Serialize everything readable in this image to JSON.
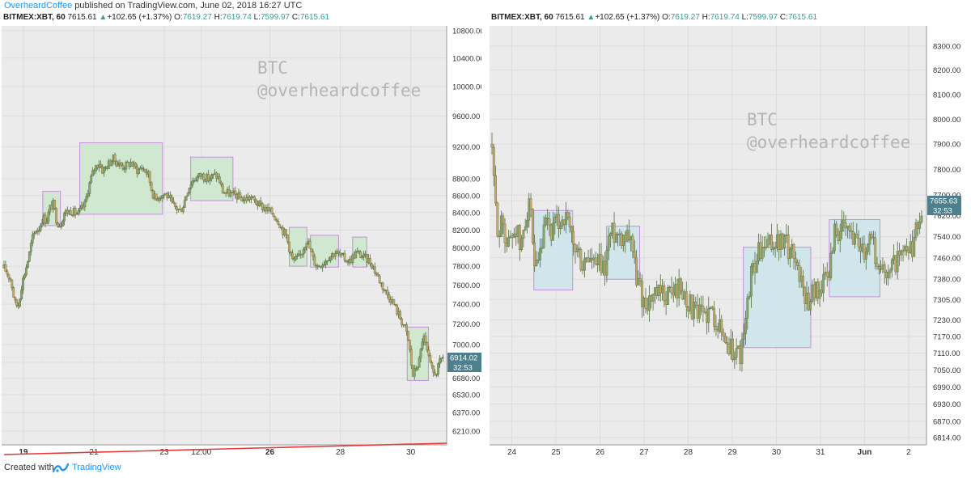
{
  "header": {
    "author": "OverheardCoffee",
    "published": " published on TradingView.com, June 02, 2018 16:27 UTC"
  },
  "footer": {
    "created_with": "Created with",
    "brand": "TradingView"
  },
  "colors": {
    "plot_bg": "#ebebeb",
    "candle_up": "#8aa66f",
    "candle_down": "#c9a86b",
    "candle_wick": "#556b3f",
    "box_green_fill": "#cfe8cf",
    "box_blue_fill": "#cfe6ea",
    "box_stroke": "#c58bdb",
    "trendline": "#e53935",
    "price_tag": "#4d7f8c",
    "header_green": "#26a69a"
  },
  "chart_data": [
    {
      "type": "candlestick",
      "symbol_line": {
        "symbol": "BITMEX:XBT, 60",
        "last": "7615.61",
        "arrow": "▲",
        "change": "+102.65 (+1.37%)",
        "open_label": "O:",
        "open": "7619.27",
        "high_label": "H:",
        "high": "7619.74",
        "low_label": "L:",
        "low": "7599.97",
        "close_label": "C:",
        "close": "7615.61"
      },
      "watermark": [
        "BTC",
        "@overheardcoffee"
      ],
      "yaxis_scale": "log",
      "ylim": [
        6120,
        11000
      ],
      "y_ticks": [
        "10800.00",
        "10400.00",
        "10000.00",
        "9600.00",
        "9200.00",
        "8800.00",
        "8600.00",
        "8400.00",
        "8200.00",
        "8000.00",
        "7800.00",
        "7600.00",
        "7400.00",
        "7200.00",
        "7000.00",
        "6830.00",
        "6680.00",
        "6530.00",
        "6370.00",
        "6210.00"
      ],
      "x_ticks": [
        {
          "label": "19",
          "bold": true
        },
        {
          "label": "21"
        },
        {
          "label": "23"
        },
        {
          "label": "12:00"
        },
        {
          "label": "26",
          "bold": true
        },
        {
          "label": "28"
        },
        {
          "label": "30"
        }
      ],
      "x_range_days": [
        18.4,
        30.9
      ],
      "last_price_tag": "6914.02",
      "countdown_tag": "32:53",
      "close_path": [
        [
          18.4,
          7780
        ],
        [
          18.5,
          7720
        ],
        [
          18.6,
          7650
        ],
        [
          18.7,
          7420
        ],
        [
          18.8,
          7380
        ],
        [
          18.9,
          7600
        ],
        [
          19.0,
          7750
        ],
        [
          19.1,
          7900
        ],
        [
          19.2,
          8100
        ],
        [
          19.3,
          8200
        ],
        [
          19.4,
          8220
        ],
        [
          19.5,
          8350
        ],
        [
          19.6,
          8300
        ],
        [
          19.7,
          8450
        ],
        [
          19.8,
          8500
        ],
        [
          19.9,
          8300
        ],
        [
          20.0,
          8250
        ],
        [
          20.1,
          8400
        ],
        [
          20.3,
          8420
        ],
        [
          20.5,
          8380
        ],
        [
          20.7,
          8500
        ],
        [
          20.8,
          8700
        ],
        [
          20.9,
          8850
        ],
        [
          21.0,
          8950
        ],
        [
          21.1,
          9000
        ],
        [
          21.2,
          8900
        ],
        [
          21.3,
          8950
        ],
        [
          21.5,
          9050
        ],
        [
          21.6,
          9000
        ],
        [
          21.8,
          8950
        ],
        [
          22.0,
          9000
        ],
        [
          22.2,
          8900
        ],
        [
          22.3,
          8950
        ],
        [
          22.5,
          8850
        ],
        [
          22.6,
          8650
        ],
        [
          22.7,
          8550
        ],
        [
          22.8,
          8600
        ],
        [
          23.0,
          8620
        ],
        [
          23.2,
          8480
        ],
        [
          23.4,
          8420
        ],
        [
          23.5,
          8500
        ],
        [
          23.6,
          8650
        ],
        [
          23.7,
          8750
        ],
        [
          23.8,
          8800
        ],
        [
          24.0,
          8850
        ],
        [
          24.2,
          8800
        ],
        [
          24.4,
          8850
        ],
        [
          24.5,
          8800
        ],
        [
          24.6,
          8650
        ],
        [
          24.8,
          8620
        ],
        [
          25.0,
          8600
        ],
        [
          25.2,
          8550
        ],
        [
          25.4,
          8580
        ],
        [
          25.6,
          8500
        ],
        [
          25.8,
          8450
        ],
        [
          26.0,
          8400
        ],
        [
          26.2,
          8300
        ],
        [
          26.3,
          8200
        ],
        [
          26.4,
          8150
        ],
        [
          26.6,
          7850
        ],
        [
          26.8,
          7900
        ],
        [
          27.0,
          8100
        ],
        [
          27.2,
          7850
        ],
        [
          27.3,
          7800
        ],
        [
          27.5,
          7850
        ],
        [
          27.6,
          7900
        ],
        [
          27.8,
          7950
        ],
        [
          28.0,
          7900
        ],
        [
          28.2,
          7850
        ],
        [
          28.4,
          7950
        ],
        [
          28.6,
          7900
        ],
        [
          28.8,
          7850
        ],
        [
          29.0,
          7700
        ],
        [
          29.2,
          7550
        ],
        [
          29.4,
          7450
        ],
        [
          29.6,
          7300
        ],
        [
          29.8,
          7150
        ],
        [
          29.9,
          7000
        ],
        [
          30.0,
          6700
        ],
        [
          30.2,
          6850
        ],
        [
          30.3,
          7100
        ],
        [
          30.4,
          6950
        ],
        [
          30.5,
          6800
        ],
        [
          30.6,
          6720
        ],
        [
          30.7,
          6750
        ],
        [
          30.8,
          6850
        ],
        [
          30.9,
          6914
        ]
      ],
      "boxes": [
        {
          "d0": 19.5,
          "d1": 20.0,
          "p0": 8250,
          "p1": 8650,
          "fill": "green"
        },
        {
          "d0": 20.55,
          "d1": 22.9,
          "p0": 8380,
          "p1": 9250,
          "fill": "green"
        },
        {
          "d0": 23.7,
          "d1": 24.9,
          "p0": 8540,
          "p1": 9070,
          "fill": "green"
        },
        {
          "d0": 26.5,
          "d1": 27.0,
          "p0": 7800,
          "p1": 8230,
          "fill": "green"
        },
        {
          "d0": 27.1,
          "d1": 27.9,
          "p0": 7790,
          "p1": 8140,
          "fill": "green"
        },
        {
          "d0": 28.3,
          "d1": 28.7,
          "p0": 7790,
          "p1": 8120,
          "fill": "green"
        },
        {
          "d0": 29.85,
          "d1": 30.45,
          "p0": 6660,
          "p1": 7170,
          "fill": "green"
        }
      ],
      "trendline": {
        "d0": 18.4,
        "p0": 6150,
        "d1": 30.9,
        "p1": 6205
      }
    },
    {
      "type": "candlestick",
      "symbol_line": {
        "symbol": "BITMEX:XBT, 60",
        "last": "7615.61",
        "arrow": "▲",
        "change": "+102.65 (+1.37%)",
        "open_label": "O:",
        "open": "7619.27",
        "high_label": "H:",
        "high": "7619.74",
        "low_label": "L:",
        "low": "7599.97",
        "close_label": "C:",
        "close": "7615.61"
      },
      "watermark": [
        "BTC",
        "@overheardcoffee"
      ],
      "yaxis_scale": "log",
      "ylim": [
        6780,
        8400
      ],
      "y_ticks": [
        "8300.00",
        "8200.00",
        "8100.00",
        "8000.00",
        "7900.00",
        "7800.00",
        "7700.00",
        "7620.00",
        "7540.00",
        "7460.00",
        "7380.00",
        "7305.00",
        "7230.00",
        "7170.00",
        "7110.00",
        "7050.00",
        "6990.00",
        "6930.00",
        "6870.00",
        "6814.00"
      ],
      "x_ticks": [
        {
          "label": "24"
        },
        {
          "label": "25"
        },
        {
          "label": "26"
        },
        {
          "label": "27"
        },
        {
          "label": "28"
        },
        {
          "label": "29"
        },
        {
          "label": "30"
        },
        {
          "label": "31"
        },
        {
          "label": "Jun",
          "bold": true
        },
        {
          "label": "2"
        }
      ],
      "x_range_days": [
        23.55,
        33.35
      ],
      "last_price_tag": "7655.63",
      "countdown_tag": "32:53",
      "close_path": [
        [
          23.55,
          7900
        ],
        [
          23.6,
          7700
        ],
        [
          23.7,
          7550
        ],
        [
          23.8,
          7600
        ],
        [
          23.9,
          7500
        ],
        [
          24.0,
          7550
        ],
        [
          24.1,
          7580
        ],
        [
          24.2,
          7480
        ],
        [
          24.3,
          7600
        ],
        [
          24.4,
          7700
        ],
        [
          24.5,
          7400
        ],
        [
          24.6,
          7420
        ],
        [
          24.7,
          7520
        ],
        [
          24.8,
          7600
        ],
        [
          24.9,
          7550
        ],
        [
          25.0,
          7580
        ],
        [
          25.2,
          7620
        ],
        [
          25.3,
          7560
        ],
        [
          25.4,
          7500
        ],
        [
          25.5,
          7480
        ],
        [
          25.6,
          7420
        ],
        [
          25.7,
          7460
        ],
        [
          25.8,
          7450
        ],
        [
          25.9,
          7420
        ],
        [
          26.0,
          7430
        ],
        [
          26.1,
          7410
        ],
        [
          26.2,
          7540
        ],
        [
          26.3,
          7560
        ],
        [
          26.5,
          7550
        ],
        [
          26.7,
          7560
        ],
        [
          26.8,
          7400
        ],
        [
          26.9,
          7350
        ],
        [
          27.0,
          7290
        ],
        [
          27.2,
          7310
        ],
        [
          27.4,
          7320
        ],
        [
          27.6,
          7330
        ],
        [
          27.8,
          7350
        ],
        [
          28.0,
          7300
        ],
        [
          28.2,
          7240
        ],
        [
          28.4,
          7260
        ],
        [
          28.6,
          7250
        ],
        [
          28.8,
          7170
        ],
        [
          29.0,
          7120
        ],
        [
          29.2,
          7110
        ],
        [
          29.3,
          7200
        ],
        [
          29.4,
          7380
        ],
        [
          29.6,
          7480
        ],
        [
          29.8,
          7500
        ],
        [
          30.0,
          7520
        ],
        [
          30.2,
          7510
        ],
        [
          30.4,
          7480
        ],
        [
          30.6,
          7350
        ],
        [
          30.7,
          7300
        ],
        [
          30.8,
          7330
        ],
        [
          31.0,
          7350
        ],
        [
          31.2,
          7400
        ],
        [
          31.3,
          7560
        ],
        [
          31.5,
          7560
        ],
        [
          31.7,
          7550
        ],
        [
          31.9,
          7530
        ],
        [
          32.0,
          7480
        ],
        [
          32.1,
          7560
        ],
        [
          32.2,
          7540
        ],
        [
          32.3,
          7380
        ],
        [
          32.4,
          7420
        ],
        [
          32.6,
          7430
        ],
        [
          32.8,
          7460
        ],
        [
          33.0,
          7470
        ],
        [
          33.1,
          7500
        ],
        [
          33.2,
          7580
        ],
        [
          33.3,
          7655
        ]
      ],
      "boxes": [
        {
          "d0": 24.5,
          "d1": 25.38,
          "p0": 7340,
          "p1": 7640,
          "fill": "blue"
        },
        {
          "d0": 26.15,
          "d1": 26.9,
          "p0": 7380,
          "p1": 7580,
          "fill": "blue"
        },
        {
          "d0": 29.25,
          "d1": 30.78,
          "p0": 7130,
          "p1": 7500,
          "fill": "blue"
        },
        {
          "d0": 31.2,
          "d1": 32.35,
          "p0": 7315,
          "p1": 7605,
          "fill": "blue"
        }
      ]
    }
  ]
}
